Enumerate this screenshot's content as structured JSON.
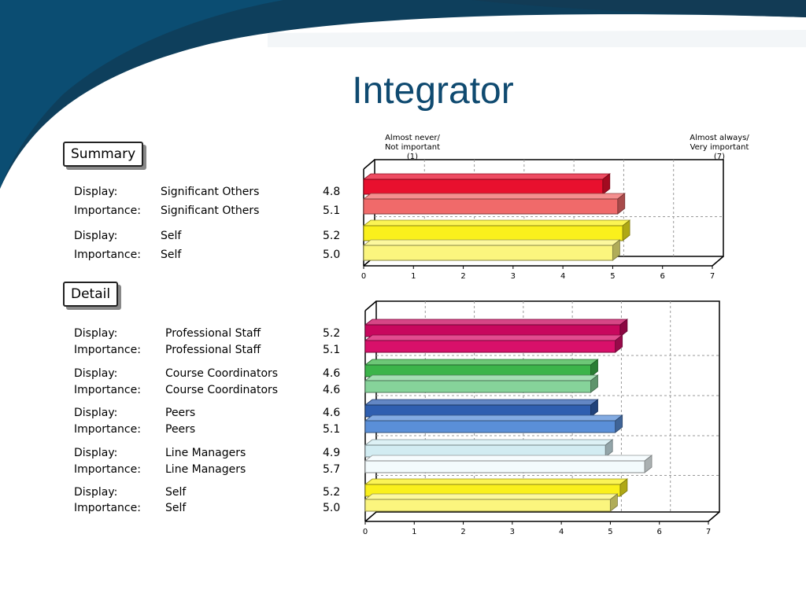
{
  "title": "Integrator",
  "scale_labels": {
    "low": [
      "Almost never/",
      "Not important",
      "(1)"
    ],
    "high": [
      "Almost always/",
      "Very important",
      "(7)"
    ]
  },
  "sections": {
    "summary": "Summary",
    "detail": "Detail"
  },
  "summary_rows": [
    {
      "type": "Display:",
      "group": "Significant Others",
      "value": "4.8"
    },
    {
      "type": "Importance:",
      "group": "Significant Others",
      "value": "5.1"
    },
    {
      "type": "Display:",
      "group": "Self",
      "value": "5.2"
    },
    {
      "type": "Importance:",
      "group": "Self",
      "value": "5.0"
    }
  ],
  "detail_rows": [
    {
      "type": "Display:",
      "group": "Professional Staff",
      "value": "5.2"
    },
    {
      "type": "Importance:",
      "group": "Professional Staff",
      "value": "5.1"
    },
    {
      "type": "Display:",
      "group": "Course Coordinators",
      "value": "4.6"
    },
    {
      "type": "Importance:",
      "group": "Course Coordinators",
      "value": "4.6"
    },
    {
      "type": "Display:",
      "group": "Peers",
      "value": "4.6"
    },
    {
      "type": "Importance:",
      "group": "Peers",
      "value": "5.1"
    },
    {
      "type": "Display:",
      "group": "Line Managers",
      "value": "4.9"
    },
    {
      "type": "Importance:",
      "group": "Line Managers",
      "value": "5.7"
    },
    {
      "type": "Display:",
      "group": "Self",
      "value": "5.2"
    },
    {
      "type": "Importance:",
      "group": "Self",
      "value": "5.0"
    }
  ],
  "chart_data": [
    {
      "type": "bar",
      "orientation": "horizontal",
      "xlim": [
        0,
        7
      ],
      "ticks": [
        0,
        1,
        2,
        3,
        4,
        5,
        6,
        7
      ],
      "grid": true,
      "bars": [
        {
          "label": "Display: Significant Others",
          "value": 4.8,
          "color": "#e8102e"
        },
        {
          "label": "Importance: Significant Others",
          "value": 5.1,
          "color": "#f06a6a"
        },
        {
          "label": "Display: Self",
          "value": 5.2,
          "color": "#faf01c"
        },
        {
          "label": "Importance: Self",
          "value": 5.0,
          "color": "#fbf57e"
        }
      ]
    },
    {
      "type": "bar",
      "orientation": "horizontal",
      "xlim": [
        0,
        7
      ],
      "ticks": [
        0,
        1,
        2,
        3,
        4,
        5,
        6,
        7
      ],
      "grid": true,
      "bars": [
        {
          "label": "Display: Professional Staff",
          "value": 5.2,
          "color": "#c8085e"
        },
        {
          "label": "Importance: Professional Staff",
          "value": 5.1,
          "color": "#d8106a"
        },
        {
          "label": "Display: Course Coordinators",
          "value": 4.6,
          "color": "#3cb44a"
        },
        {
          "label": "Importance: Course Coordinators",
          "value": 4.6,
          "color": "#86d39a"
        },
        {
          "label": "Display: Peers",
          "value": 4.6,
          "color": "#2f5fb0"
        },
        {
          "label": "Importance: Peers",
          "value": 5.1,
          "color": "#5a8fd8"
        },
        {
          "label": "Display: Line Managers",
          "value": 4.9,
          "color": "#d2ecf2"
        },
        {
          "label": "Importance: Line Managers",
          "value": 5.7,
          "color": "#f3fbfd"
        },
        {
          "label": "Display: Self",
          "value": 5.2,
          "color": "#faf01c"
        },
        {
          "label": "Importance: Self",
          "value": 5.0,
          "color": "#fbf57e"
        }
      ]
    }
  ],
  "colors": {
    "title": "#0f4a70",
    "band_dark": "#0e3f5c",
    "band_light": "#0a5a85"
  }
}
